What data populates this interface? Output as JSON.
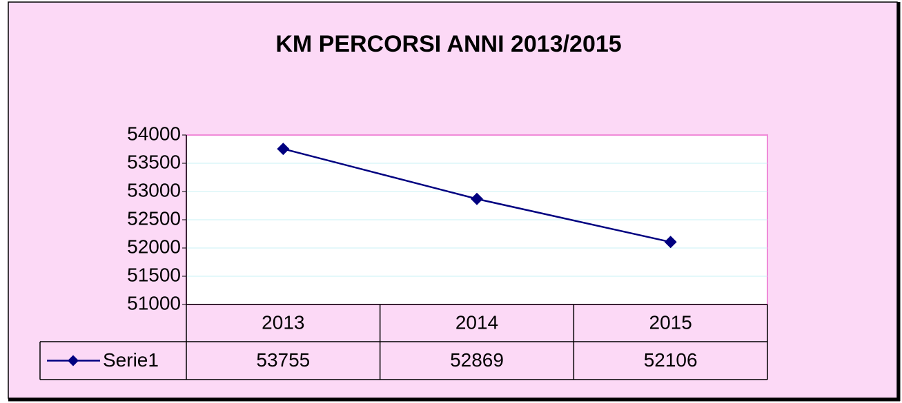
{
  "chart_data": {
    "type": "line",
    "title": "KM  PERCORSI  ANNI 2013/2015",
    "categories": [
      "2013",
      "2014",
      "2015"
    ],
    "series": [
      {
        "name": "Serie1",
        "color": "#000080",
        "values": [
          53755,
          52869,
          52106
        ]
      }
    ],
    "ylim": [
      51000,
      54000
    ],
    "yticks": [
      51000,
      51500,
      52000,
      52500,
      53000,
      53500,
      54000
    ],
    "grid": true,
    "legend": "bottom",
    "data_table": true
  }
}
